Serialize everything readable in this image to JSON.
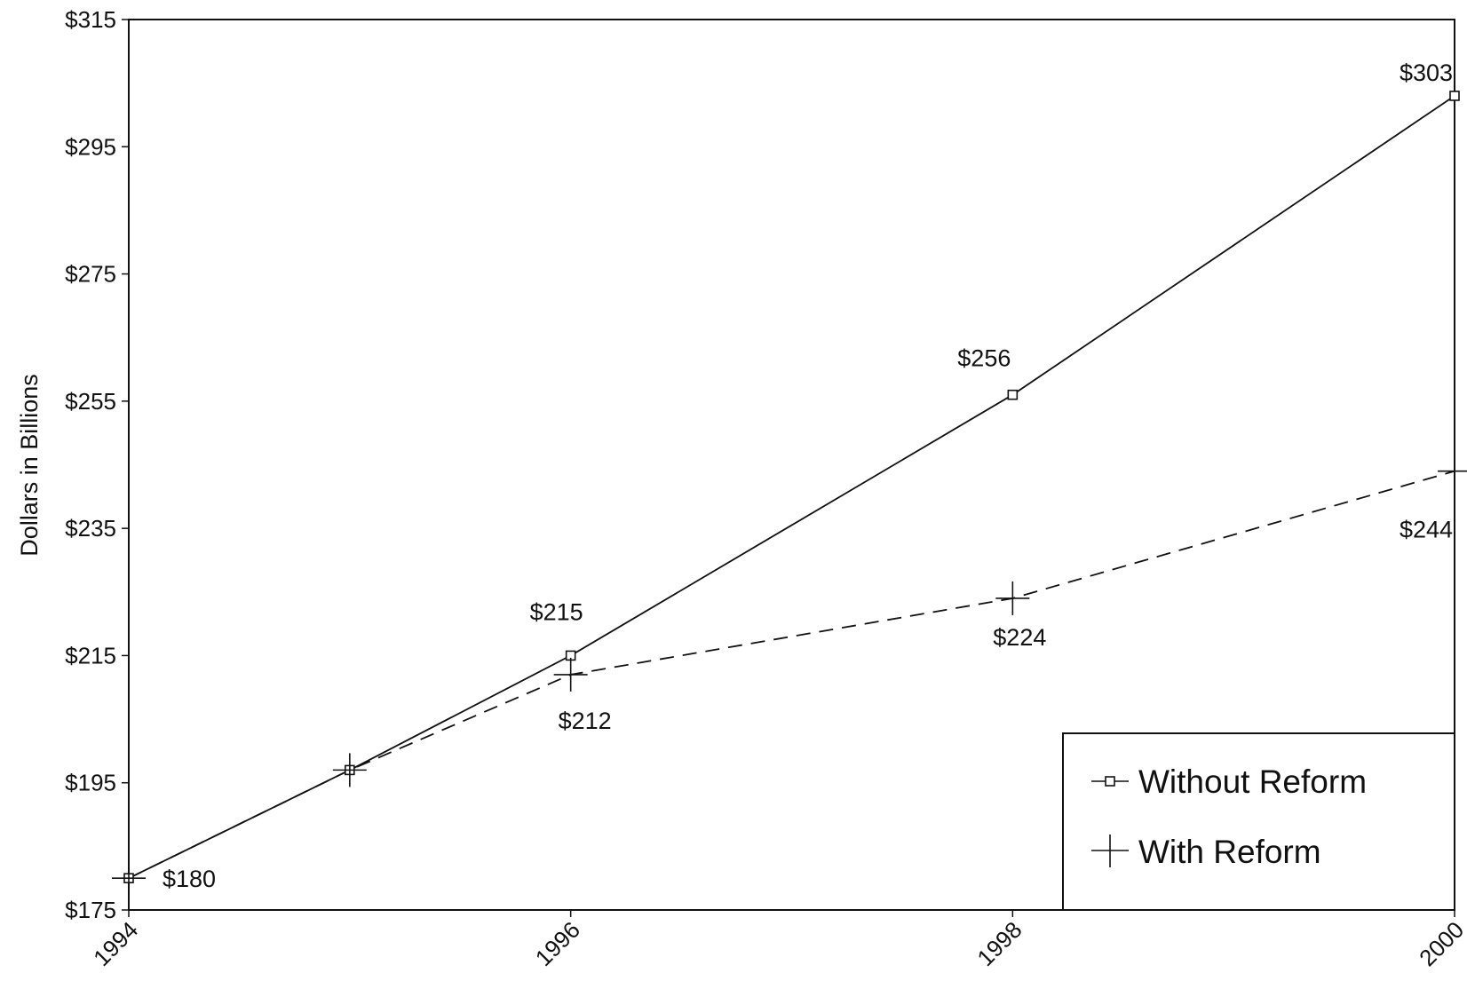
{
  "chart_data": {
    "type": "line",
    "title": "",
    "xlabel": "",
    "ylabel": "Dollars in Billions",
    "ylim": [
      175,
      315
    ],
    "yticks": [
      175,
      195,
      215,
      235,
      255,
      275,
      295,
      315
    ],
    "ytick_labels": [
      "$175",
      "$195",
      "$215",
      "$235",
      "$255",
      "$275",
      "$295",
      "$315"
    ],
    "xlim": [
      1994,
      2000
    ],
    "xticks": [
      1994,
      1996,
      1998,
      2000
    ],
    "xtick_labels": [
      "1994",
      "1996",
      "1998",
      "2000"
    ],
    "grid": false,
    "legend_position": "bottom-right",
    "series": [
      {
        "name": "Without Reform",
        "style": "solid",
        "marker": "square",
        "x": [
          1994,
          1995,
          1996,
          1998,
          2000
        ],
        "y": [
          180,
          197,
          215,
          256,
          303
        ],
        "labels": [
          "$180",
          "",
          "$215",
          "$256",
          "$303"
        ]
      },
      {
        "name": "With Reform",
        "style": "dashed",
        "marker": "plus",
        "x": [
          1994,
          1995,
          1996,
          1998,
          2000
        ],
        "y": [
          180,
          197,
          212,
          224,
          244
        ],
        "labels": [
          "",
          "",
          "$212",
          "$224",
          "$244"
        ]
      }
    ]
  }
}
